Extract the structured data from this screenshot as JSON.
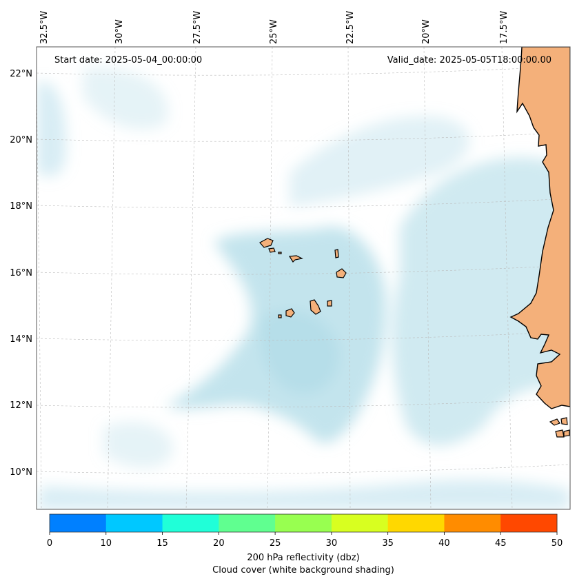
{
  "map": {
    "annotations": {
      "start_date": "Start date: 2025-05-04_00:00:00",
      "valid_date": "Valid_date: 2025-05-05T18:00:00.00"
    },
    "longitude_labels": [
      "32.5°W",
      "30°W",
      "27.5°W",
      "25°W",
      "22.5°W",
      "20°W",
      "17.5°W"
    ],
    "latitude_labels": [
      "22°N",
      "20°N",
      "18°N",
      "16°N",
      "14°N",
      "12°N",
      "10°N"
    ],
    "colors": {
      "cloud_shading": "#a9d8e6",
      "land": "#f4b07a",
      "coast": "#000000",
      "grid": "#bbbbbb"
    }
  },
  "colorbar": {
    "ticks": [
      "0",
      "10",
      "15",
      "20",
      "25",
      "30",
      "35",
      "40",
      "45",
      "50"
    ],
    "colors": [
      "#0080ff",
      "#00c8ff",
      "#20ffd8",
      "#60ff90",
      "#98ff50",
      "#d8ff20",
      "#ffd800",
      "#ff8c00",
      "#ff4800"
    ],
    "label_line1": "200 hPa reflectivity (dbz)",
    "label_line2": "Cloud cover (white background shading)"
  }
}
